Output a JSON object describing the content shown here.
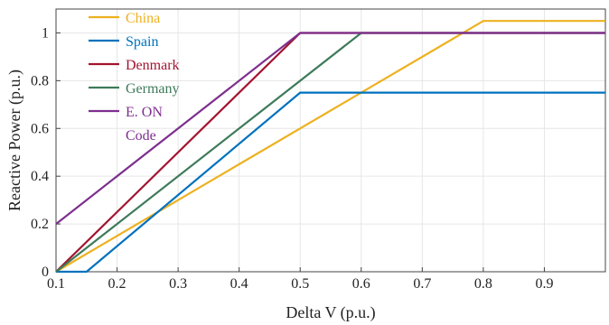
{
  "chart_data": {
    "type": "line",
    "title": "",
    "xlabel": "Delta V (p.u.)",
    "ylabel": "Reactive Power (p.u.)",
    "xlim": [
      0.1,
      1.0
    ],
    "ylim": [
      0,
      1.1
    ],
    "x_ticks": [
      "0.1",
      "0.2",
      "0.3",
      "0.4",
      "0.5",
      "0.6",
      "0.7",
      "0.8",
      "0.9"
    ],
    "y_ticks": [
      "0",
      "0.2",
      "0.4",
      "0.6",
      "0.8",
      "1"
    ],
    "grid": true,
    "legend_position": "top-left",
    "series": [
      {
        "name": "China",
        "color": "#edb120",
        "x": [
          0.1,
          0.8,
          1.0
        ],
        "y": [
          0,
          1.05,
          1.05
        ]
      },
      {
        "name": "Spain",
        "color": "#0072bd",
        "x": [
          0.1,
          0.15,
          0.5,
          1.0
        ],
        "y": [
          0,
          0,
          0.75,
          0.75
        ]
      },
      {
        "name": "Denmark",
        "color": "#a2142f",
        "x": [
          0.1,
          0.5,
          1.0
        ],
        "y": [
          0,
          1,
          1
        ]
      },
      {
        "name": "Germany",
        "color": "#3d7a5a",
        "x": [
          0.1,
          0.6,
          1.0
        ],
        "y": [
          0,
          1,
          1
        ]
      },
      {
        "name": "E. ON Code",
        "label_lines": [
          "E. ON",
          "Code"
        ],
        "color": "#7e2f8e",
        "x": [
          0.1,
          0.5,
          1.0
        ],
        "y": [
          0.2,
          1,
          1
        ]
      }
    ]
  }
}
